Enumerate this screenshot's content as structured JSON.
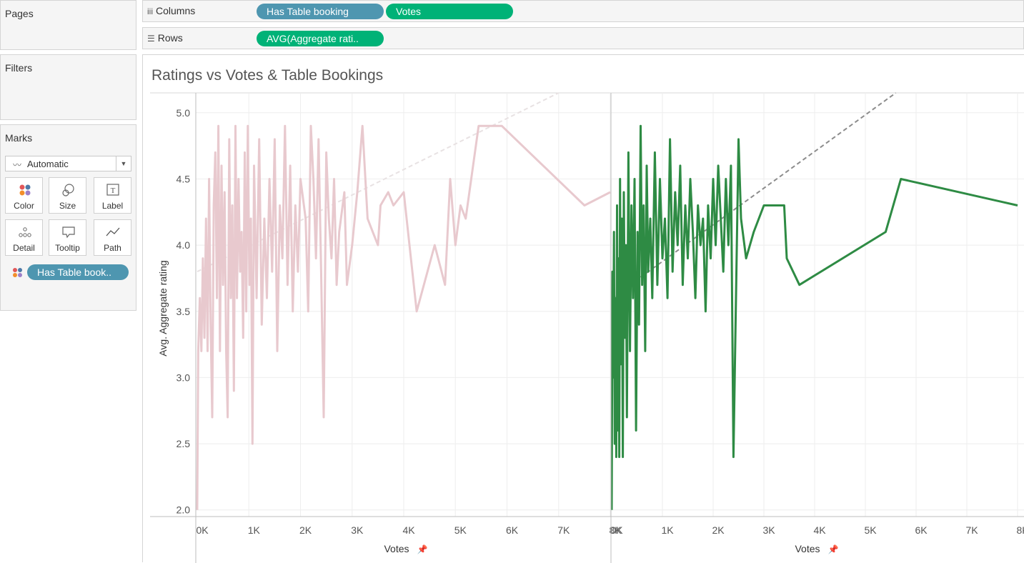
{
  "pages": {
    "title": "Pages"
  },
  "filters": {
    "title": "Filters"
  },
  "marks": {
    "title": "Marks",
    "type": "Automatic",
    "buttons": [
      "Color",
      "Size",
      "Label",
      "Detail",
      "Tooltip",
      "Path"
    ],
    "color_pill": "Has Table book.."
  },
  "shelves": {
    "columns_label": "Columns",
    "columns_pills": [
      "Has Table booking",
      "Votes"
    ],
    "rows_label": "Rows",
    "rows_pills": [
      "AVG(Aggregate rati.."
    ]
  },
  "view": {
    "title": "Ratings vs Votes & Table Bookings"
  },
  "chart_data": {
    "type": "line",
    "title": "Ratings vs Votes & Table Bookings",
    "ylabel": "Avg. Aggregate rating",
    "xlabel": "Votes",
    "ylim": [
      1.95,
      5.15
    ],
    "yticks": [
      "2.0",
      "2.5",
      "3.0",
      "3.5",
      "4.0",
      "4.5",
      "5.0"
    ],
    "xlim": [
      0,
      8000
    ],
    "xticks": [
      "0K",
      "1K",
      "2K",
      "3K",
      "4K",
      "5K",
      "6K",
      "7K",
      "8K"
    ],
    "grid": true,
    "panes": [
      {
        "name": "",
        "color": "#e8c9ce",
        "trend_color": "#e8e2e3",
        "trend": {
          "start": [
            0,
            3.8
          ],
          "end": [
            7000,
            5.15
          ]
        },
        "points": [
          [
            0,
            2.0
          ],
          [
            20,
            3.2
          ],
          [
            50,
            3.6
          ],
          [
            80,
            3.2
          ],
          [
            110,
            3.9
          ],
          [
            140,
            3.3
          ],
          [
            170,
            4.2
          ],
          [
            200,
            3.2
          ],
          [
            230,
            4.5
          ],
          [
            260,
            3.4
          ],
          [
            290,
            2.7
          ],
          [
            320,
            4.3
          ],
          [
            350,
            4.7
          ],
          [
            380,
            3.6
          ],
          [
            410,
            4.9
          ],
          [
            440,
            3.2
          ],
          [
            470,
            4.6
          ],
          [
            500,
            3.7
          ],
          [
            530,
            4.4
          ],
          [
            560,
            3.2
          ],
          [
            590,
            2.7
          ],
          [
            620,
            4.8
          ],
          [
            650,
            3.6
          ],
          [
            680,
            4.3
          ],
          [
            710,
            2.9
          ],
          [
            740,
            4.9
          ],
          [
            770,
            3.6
          ],
          [
            800,
            4.5
          ],
          [
            830,
            3.8
          ],
          [
            860,
            4.1
          ],
          [
            890,
            3.3
          ],
          [
            920,
            4.7
          ],
          [
            950,
            3.5
          ],
          [
            980,
            4.9
          ],
          [
            1010,
            3.7
          ],
          [
            1040,
            4.2
          ],
          [
            1070,
            2.5
          ],
          [
            1100,
            4.6
          ],
          [
            1150,
            3.6
          ],
          [
            1200,
            4.8
          ],
          [
            1250,
            3.4
          ],
          [
            1300,
            4.2
          ],
          [
            1350,
            3.6
          ],
          [
            1400,
            4.5
          ],
          [
            1450,
            3.8
          ],
          [
            1500,
            4.8
          ],
          [
            1550,
            3.2
          ],
          [
            1600,
            4.3
          ],
          [
            1650,
            3.9
          ],
          [
            1700,
            4.9
          ],
          [
            1750,
            3.7
          ],
          [
            1800,
            4.6
          ],
          [
            1850,
            3.5
          ],
          [
            1900,
            4.3
          ],
          [
            1950,
            3.8
          ],
          [
            2000,
            4.5
          ],
          [
            2100,
            4.2
          ],
          [
            2150,
            3.5
          ],
          [
            2200,
            4.9
          ],
          [
            2250,
            4.5
          ],
          [
            2300,
            3.9
          ],
          [
            2350,
            4.8
          ],
          [
            2400,
            3.8
          ],
          [
            2450,
            2.7
          ],
          [
            2500,
            4.7
          ],
          [
            2550,
            4.2
          ],
          [
            2600,
            3.9
          ],
          [
            2650,
            4.5
          ],
          [
            2700,
            3.7
          ],
          [
            2750,
            4.1
          ],
          [
            2850,
            4.4
          ],
          [
            2900,
            3.7
          ],
          [
            3000,
            4.0
          ],
          [
            3100,
            4.4
          ],
          [
            3200,
            4.9
          ],
          [
            3300,
            4.2
          ],
          [
            3400,
            4.1
          ],
          [
            3500,
            4.0
          ],
          [
            3550,
            4.3
          ],
          [
            3700,
            4.4
          ],
          [
            3800,
            4.3
          ],
          [
            4000,
            4.4
          ],
          [
            4250,
            3.5
          ],
          [
            4600,
            4.0
          ],
          [
            4800,
            3.7
          ],
          [
            4900,
            4.5
          ],
          [
            5000,
            4.0
          ],
          [
            5100,
            4.3
          ],
          [
            5200,
            4.2
          ],
          [
            5450,
            4.9
          ],
          [
            5900,
            4.9
          ],
          [
            6700,
            4.6
          ],
          [
            7500,
            4.3
          ],
          [
            8000,
            4.4
          ]
        ]
      },
      {
        "name": "",
        "color": "#2e8b44",
        "trend_color": "#8c8c8c",
        "trend": {
          "start": [
            0,
            3.6
          ],
          "end": [
            5600,
            5.15
          ]
        },
        "points": [
          [
            0,
            2.0
          ],
          [
            15,
            3.8
          ],
          [
            30,
            3.0
          ],
          [
            45,
            4.1
          ],
          [
            60,
            2.5
          ],
          [
            75,
            3.6
          ],
          [
            90,
            2.4
          ],
          [
            105,
            4.3
          ],
          [
            120,
            2.6
          ],
          [
            135,
            3.9
          ],
          [
            150,
            2.4
          ],
          [
            165,
            4.5
          ],
          [
            180,
            3.1
          ],
          [
            200,
            4.2
          ],
          [
            220,
            2.4
          ],
          [
            240,
            4.4
          ],
          [
            260,
            3.3
          ],
          [
            280,
            4.0
          ],
          [
            300,
            2.7
          ],
          [
            330,
            4.7
          ],
          [
            360,
            3.2
          ],
          [
            390,
            4.3
          ],
          [
            420,
            3.6
          ],
          [
            450,
            4.5
          ],
          [
            480,
            2.6
          ],
          [
            510,
            4.1
          ],
          [
            540,
            3.4
          ],
          [
            570,
            4.9
          ],
          [
            600,
            3.7
          ],
          [
            630,
            4.3
          ],
          [
            660,
            3.2
          ],
          [
            690,
            4.6
          ],
          [
            720,
            3.8
          ],
          [
            760,
            4.2
          ],
          [
            800,
            3.6
          ],
          [
            850,
            4.7
          ],
          [
            900,
            3.7
          ],
          [
            950,
            4.5
          ],
          [
            1000,
            3.9
          ],
          [
            1050,
            4.2
          ],
          [
            1100,
            3.6
          ],
          [
            1150,
            4.8
          ],
          [
            1200,
            3.8
          ],
          [
            1250,
            4.4
          ],
          [
            1300,
            4.0
          ],
          [
            1350,
            4.6
          ],
          [
            1400,
            3.7
          ],
          [
            1450,
            4.3
          ],
          [
            1500,
            3.9
          ],
          [
            1550,
            4.5
          ],
          [
            1600,
            4.1
          ],
          [
            1650,
            3.6
          ],
          [
            1700,
            4.3
          ],
          [
            1750,
            4.0
          ],
          [
            1800,
            4.2
          ],
          [
            1850,
            3.5
          ],
          [
            1900,
            4.3
          ],
          [
            1950,
            3.9
          ],
          [
            2000,
            4.5
          ],
          [
            2050,
            4.0
          ],
          [
            2100,
            4.6
          ],
          [
            2200,
            3.8
          ],
          [
            2250,
            4.5
          ],
          [
            2300,
            4.0
          ],
          [
            2350,
            4.6
          ],
          [
            2400,
            2.4
          ],
          [
            2500,
            4.8
          ],
          [
            2550,
            4.2
          ],
          [
            2650,
            3.9
          ],
          [
            2800,
            4.1
          ],
          [
            3000,
            4.3
          ],
          [
            3400,
            4.3
          ],
          [
            3450,
            3.9
          ],
          [
            3700,
            3.7
          ],
          [
            5400,
            4.1
          ],
          [
            5700,
            4.5
          ],
          [
            8000,
            4.3
          ]
        ]
      }
    ]
  }
}
